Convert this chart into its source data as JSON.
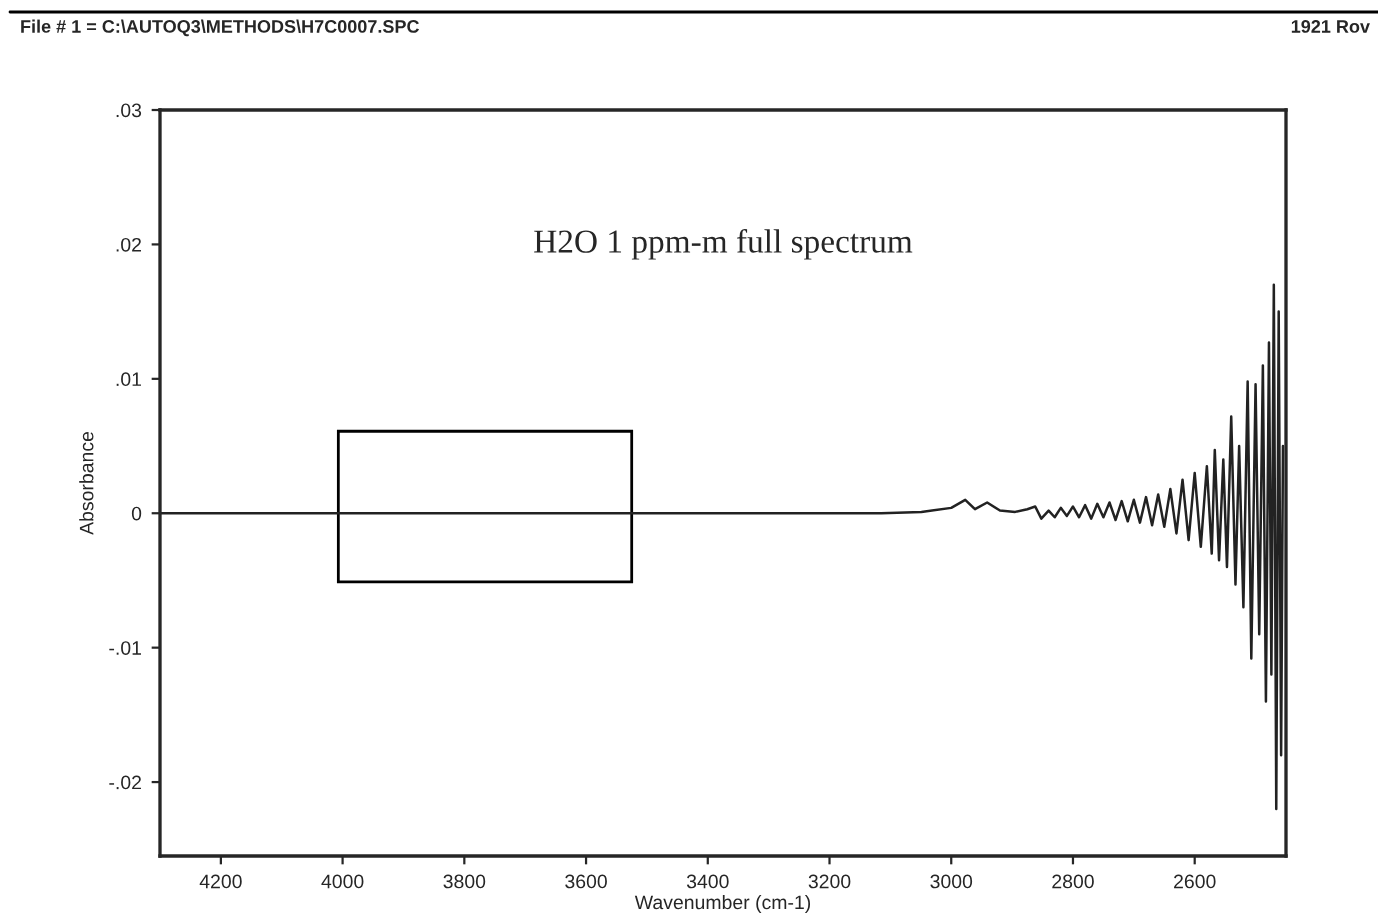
{
  "chart_data": {
    "type": "line",
    "title": "H2O 1 ppm-m full spectrum",
    "xlabel": "Wavenumber (cm-1)",
    "ylabel": "Absorbance",
    "annotations": [
      "File # 1 = C:\\AUTOQ3\\METHODS\\H7C0007.SPC",
      "1921 Rov"
    ],
    "series": [
      {
        "color": "#222222",
        "x": [
          4300,
          3115,
          3049,
          3000,
          2977,
          2961,
          2941,
          2920,
          2895,
          2875,
          2862,
          2852,
          2840,
          2830,
          2820,
          2810,
          2800,
          2790,
          2780,
          2770,
          2760,
          2750,
          2740,
          2730,
          2720,
          2710,
          2700,
          2690,
          2680,
          2670,
          2660,
          2650,
          2640,
          2630,
          2620,
          2610,
          2600,
          2590,
          2580,
          2572,
          2567,
          2560,
          2553,
          2547,
          2540,
          2533,
          2527,
          2520,
          2513,
          2507,
          2500,
          2494,
          2488,
          2483,
          2478,
          2474,
          2470,
          2466,
          2462,
          2458,
          2455
        ],
        "values": [
          0,
          0,
          0.0001,
          0.0004,
          0.001,
          0.0003,
          0.0008,
          0.0002,
          0.0001,
          0.0003,
          0.0005,
          -0.0004,
          0.0002,
          -0.0003,
          0.0004,
          -0.0002,
          0.0005,
          -0.0003,
          0.0006,
          -0.0004,
          0.0007,
          -0.0003,
          0.0008,
          -0.0005,
          0.0009,
          -0.0006,
          0.001,
          -0.0007,
          0.0012,
          -0.0009,
          0.0014,
          -0.001,
          0.0018,
          -0.0015,
          0.0025,
          -0.002,
          0.003,
          -0.0025,
          0.0035,
          -0.003,
          0.0047,
          -0.0035,
          0.004,
          -0.004,
          0.0072,
          -0.0053,
          0.005,
          -0.007,
          0.0098,
          -0.0108,
          0.0096,
          -0.009,
          0.011,
          -0.014,
          0.0127,
          -0.012,
          0.017,
          -0.022,
          0.015,
          -0.018,
          0.005
        ]
      }
    ],
    "xlim": [
      4300,
      2450
    ],
    "xticks": [
      4200,
      4000,
      3800,
      3600,
      3400,
      3200,
      3000,
      2800,
      2600
    ],
    "ylim": [
      -0.0255,
      0.03
    ],
    "yticks": [
      {
        "value": 0.03,
        "label": ".03"
      },
      {
        "value": 0.02,
        "label": ".02"
      },
      {
        "value": 0.01,
        "label": ".01"
      },
      {
        "value": 0,
        "label": "0"
      },
      {
        "value": -0.01,
        "label": "-.01"
      },
      {
        "value": -0.02,
        "label": "-.02"
      }
    ],
    "grid": false,
    "legend": false
  }
}
